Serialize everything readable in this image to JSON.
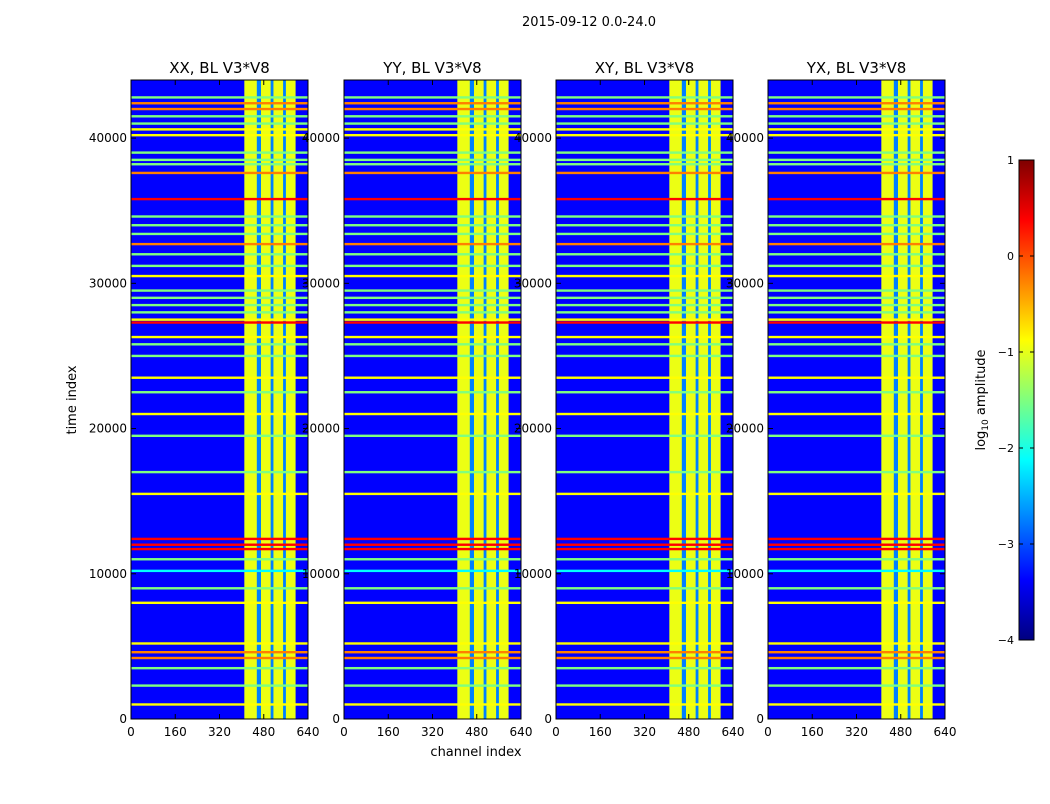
{
  "figure_title": "2015-09-12 0.0-24.0",
  "chart_data": {
    "type": "heatmap",
    "title": "2015-09-12 0.0-24.0",
    "xlabel": "channel index",
    "ylabel": "time index",
    "xlim": [
      0,
      640
    ],
    "ylim": [
      0,
      44000
    ],
    "xticks": [
      0,
      160,
      320,
      480,
      640
    ],
    "yticks": [
      0,
      10000,
      20000,
      30000,
      40000
    ],
    "panels": [
      {
        "title": "XX, BL V3*V8"
      },
      {
        "title": "YY, BL V3*V8"
      },
      {
        "title": "XY, BL V3*V8"
      },
      {
        "title": "YX, BL V3*V8"
      }
    ],
    "band_edges": [
      410,
      455,
      470,
      505,
      515,
      550,
      560,
      595
    ],
    "horizontal_lines": [
      {
        "t": 1000,
        "level": -1.0
      },
      {
        "t": 2300,
        "level": -1.7
      },
      {
        "t": 3500,
        "level": -1.8
      },
      {
        "t": 4200,
        "level": 0.0
      },
      {
        "t": 4600,
        "level": 0.0
      },
      {
        "t": 5200,
        "level": -0.9
      },
      {
        "t": 8000,
        "level": -0.8
      },
      {
        "t": 9000,
        "level": -1.2
      },
      {
        "t": 10200,
        "level": -2.0
      },
      {
        "t": 11000,
        "level": -1.5
      },
      {
        "t": 11700,
        "level": 0.1
      },
      {
        "t": 12000,
        "level": 0.1
      },
      {
        "t": 12400,
        "level": 0.1
      },
      {
        "t": 15500,
        "level": -0.8
      },
      {
        "t": 17000,
        "level": -1.2
      },
      {
        "t": 19500,
        "level": -1.2
      },
      {
        "t": 21000,
        "level": -0.8
      },
      {
        "t": 22500,
        "level": -1.2
      },
      {
        "t": 23500,
        "level": -1.0
      },
      {
        "t": 25000,
        "level": -1.5
      },
      {
        "t": 25800,
        "level": -1.8
      },
      {
        "t": 26300,
        "level": -1.0
      },
      {
        "t": 27300,
        "level": 0.1
      },
      {
        "t": 27500,
        "level": -0.8
      },
      {
        "t": 28000,
        "level": -1.8
      },
      {
        "t": 28500,
        "level": -1.8
      },
      {
        "t": 29000,
        "level": -1.8
      },
      {
        "t": 29500,
        "level": -1.8
      },
      {
        "t": 30500,
        "level": -1.0
      },
      {
        "t": 31200,
        "level": -1.8
      },
      {
        "t": 32000,
        "level": -1.8
      },
      {
        "t": 32700,
        "level": 0.0
      },
      {
        "t": 33400,
        "level": -1.5
      },
      {
        "t": 34000,
        "level": -1.8
      },
      {
        "t": 34600,
        "level": -1.8
      },
      {
        "t": 35800,
        "level": 0.1
      },
      {
        "t": 37600,
        "level": 0.0
      },
      {
        "t": 38200,
        "level": -1.8
      },
      {
        "t": 38500,
        "level": -1.8
      },
      {
        "t": 39000,
        "level": -1.8
      },
      {
        "t": 40200,
        "level": -0.8
      },
      {
        "t": 40600,
        "level": -1.0
      },
      {
        "t": 41000,
        "level": -1.8
      },
      {
        "t": 41500,
        "level": -1.8
      },
      {
        "t": 42000,
        "level": 0.0
      },
      {
        "t": 42400,
        "level": 0.0
      },
      {
        "t": 42800,
        "level": -1.8
      }
    ],
    "colorbar": {
      "label": "log10 amplitude",
      "label_base": "log",
      "label_sub": "10",
      "label_rest": " amplitude",
      "min": -4,
      "max": 1,
      "ticks": [
        1,
        0,
        -1,
        -2,
        -3,
        -4
      ],
      "colormap": [
        "#00007f",
        "#0000ff",
        "#007fff",
        "#00ffff",
        "#7fff7f",
        "#ffff00",
        "#ff7f00",
        "#ff0000",
        "#7f0000"
      ]
    }
  }
}
